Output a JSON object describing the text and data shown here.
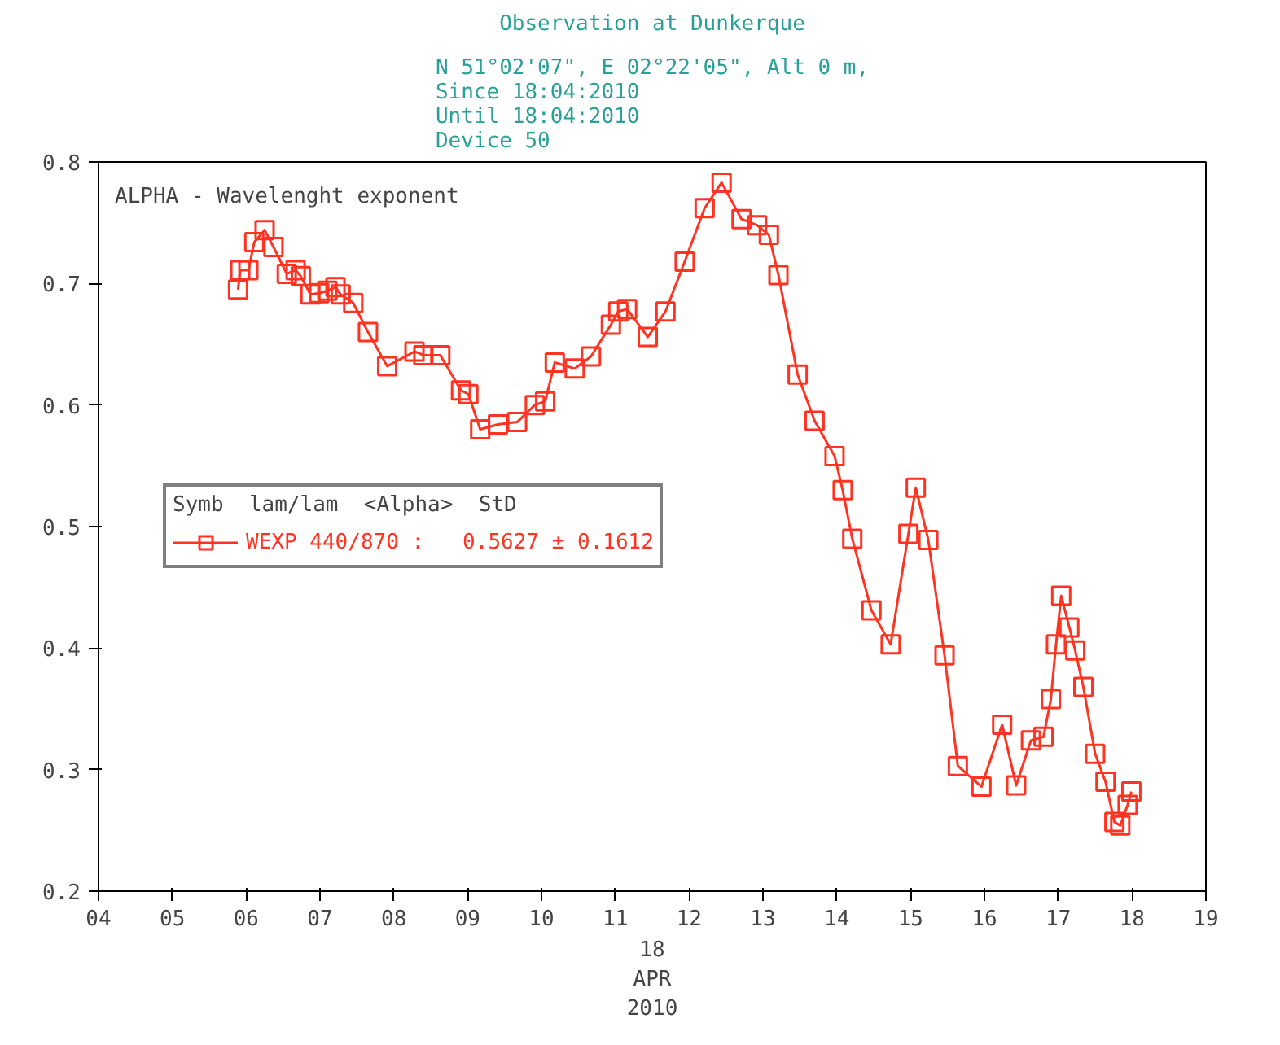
{
  "chart_data": {
    "type": "line",
    "title": "Observation at Dunkerque",
    "subtitle": "N 51°02'07\", E 02°22'05\", Alt 0 m,\nSince 18:04:2010\nUntil 18:04:2010\nDevice 50",
    "ylabel": "ALPHA - Wavelenght exponent",
    "xlabel": "18\nAPR\n2010",
    "legend_title": "Symb  lam/lam  <Alpha>  StD",
    "x": [
      5.89,
      5.92,
      6.03,
      6.11,
      6.25,
      6.37,
      6.55,
      6.67,
      6.74,
      6.87,
      6.99,
      7.1,
      7.21,
      7.28,
      7.45,
      7.65,
      7.91,
      8.28,
      8.4,
      8.63,
      8.91,
      9.01,
      9.17,
      9.41,
      9.67,
      9.91,
      10.05,
      10.18,
      10.45,
      10.67,
      10.94,
      11.04,
      11.16,
      11.44,
      11.68,
      11.94,
      12.21,
      12.44,
      12.71,
      12.92,
      13.08,
      13.21,
      13.47,
      13.7,
      13.97,
      14.08,
      14.21,
      14.47,
      14.73,
      14.97,
      15.07,
      15.24,
      15.46,
      15.64,
      15.96,
      16.24,
      16.43,
      16.63,
      16.8,
      16.9,
      16.97,
      17.04,
      17.15,
      17.23,
      17.34,
      17.5,
      17.64,
      17.76,
      17.84,
      17.94,
      17.99
    ],
    "series": [
      {
        "name": "WEXP 440/870 :   0.5627 ± 0.1612",
        "color": "#ff3322",
        "values": [
          0.695,
          0.711,
          0.711,
          0.734,
          0.744,
          0.73,
          0.708,
          0.711,
          0.706,
          0.691,
          0.692,
          0.694,
          0.697,
          0.691,
          0.684,
          0.66,
          0.632,
          0.644,
          0.641,
          0.641,
          0.612,
          0.609,
          0.58,
          0.584,
          0.586,
          0.6,
          0.603,
          0.635,
          0.63,
          0.64,
          0.666,
          0.677,
          0.679,
          0.656,
          0.677,
          0.718,
          0.762,
          0.783,
          0.753,
          0.748,
          0.74,
          0.707,
          0.625,
          0.587,
          0.558,
          0.53,
          0.49,
          0.431,
          0.403,
          0.494,
          0.532,
          0.489,
          0.394,
          0.303,
          0.286,
          0.337,
          0.287,
          0.324,
          0.327,
          0.358,
          0.403,
          0.443,
          0.417,
          0.398,
          0.368,
          0.313,
          0.29,
          0.257,
          0.254,
          0.271,
          0.282
        ]
      }
    ],
    "xlim": [
      4,
      19
    ],
    "xticks": [
      {
        "value": 4,
        "label": "04"
      },
      {
        "value": 5,
        "label": "05"
      },
      {
        "value": 6,
        "label": "06"
      },
      {
        "value": 7,
        "label": "07"
      },
      {
        "value": 8,
        "label": "08"
      },
      {
        "value": 9,
        "label": "09"
      },
      10,
      11,
      12,
      13,
      14,
      15,
      16,
      17,
      18,
      19
    ],
    "ylim": [
      0.2,
      0.8
    ],
    "yticks": [
      0.2,
      0.3,
      0.4,
      0.5,
      0.6,
      0.7,
      0.8
    ],
    "grid": false,
    "legend": "left",
    "marker": "square",
    "line_style": "solid"
  }
}
